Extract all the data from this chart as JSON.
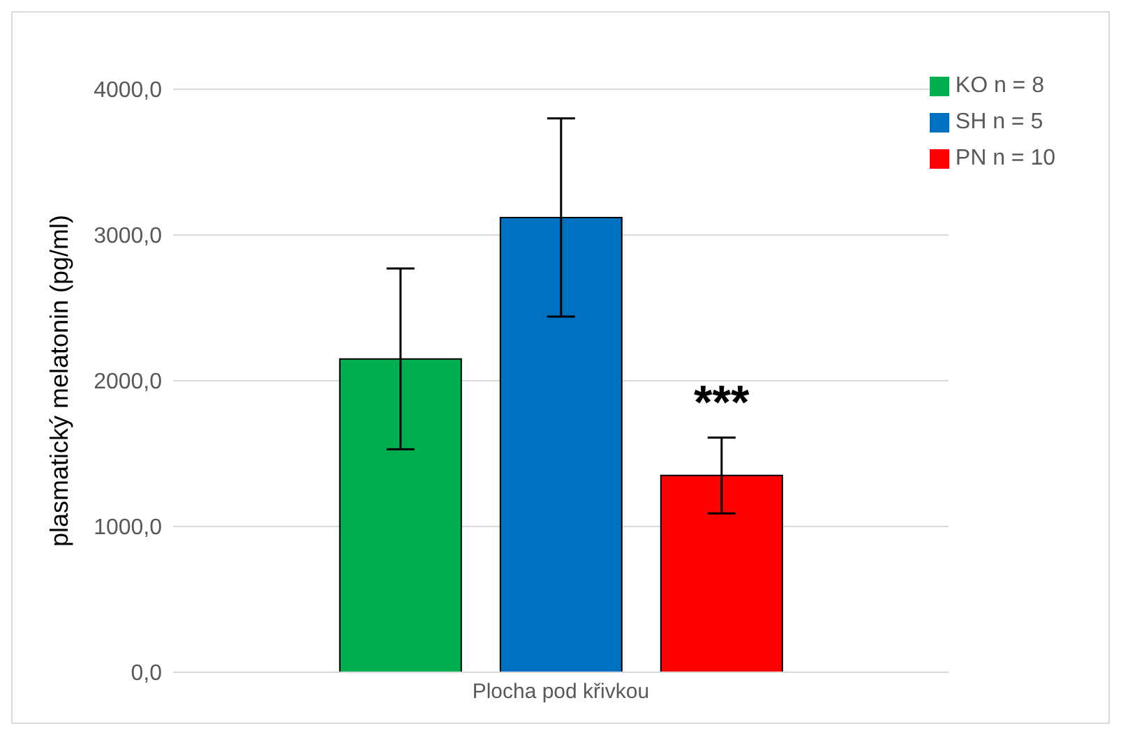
{
  "chart_data": {
    "type": "bar",
    "ylabel": "plasmatický melatonin  (pg/ml)",
    "categories": [
      "Plocha pod křivkou"
    ],
    "series": [
      {
        "name": "KO n = 8",
        "color": "#00b050",
        "values": [
          2150
        ],
        "errors": [
          620
        ]
      },
      {
        "name": "SH n = 5",
        "color": "#0070c0",
        "values": [
          3120
        ],
        "errors": [
          680
        ]
      },
      {
        "name": "PN n = 10",
        "color": "#ff0000",
        "values": [
          1350
        ],
        "errors": [
          260
        ]
      }
    ],
    "ylim": [
      0,
      4000
    ],
    "yticks": [
      {
        "value": 0,
        "label": "0,0"
      },
      {
        "value": 1000,
        "label": "1000,0"
      },
      {
        "value": 2000,
        "label": "2000,0"
      },
      {
        "value": 3000,
        "label": "3000,0"
      },
      {
        "value": 4000,
        "label": "4000,0"
      }
    ],
    "grid": "y",
    "legend": "top right",
    "annotations": [
      "***"
    ]
  }
}
